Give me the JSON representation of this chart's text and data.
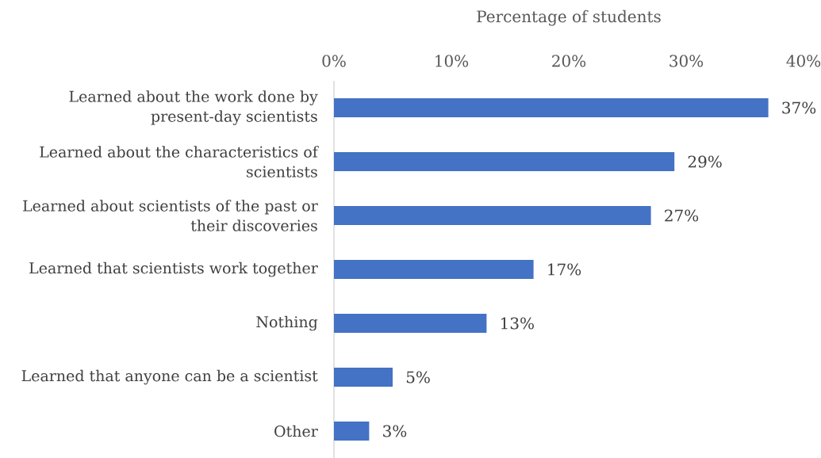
{
  "chart_data": {
    "type": "bar",
    "orientation": "horizontal",
    "xlabel": "Percentage of students",
    "categories": [
      "Learned about the work done by present-day scientists",
      "Learned about the characteristics of scientists",
      "Learned about scientists of the past or their discoveries",
      "Learned that scientists work together",
      "Nothing",
      "Learned that anyone can be a scientist",
      "Other"
    ],
    "values": [
      37,
      29,
      27,
      17,
      13,
      5,
      3
    ],
    "value_labels": [
      "37%",
      "29%",
      "27%",
      "17%",
      "13%",
      "5%",
      "3%"
    ],
    "color": "#4472c4",
    "xlim": [
      0,
      40
    ],
    "xticks": [
      {
        "value": 0,
        "label": "0%"
      },
      {
        "value": 10,
        "label": "10%"
      },
      {
        "value": 20,
        "label": "20%"
      },
      {
        "value": 30,
        "label": "30%"
      },
      {
        "value": 40,
        "label": "40%"
      }
    ]
  }
}
